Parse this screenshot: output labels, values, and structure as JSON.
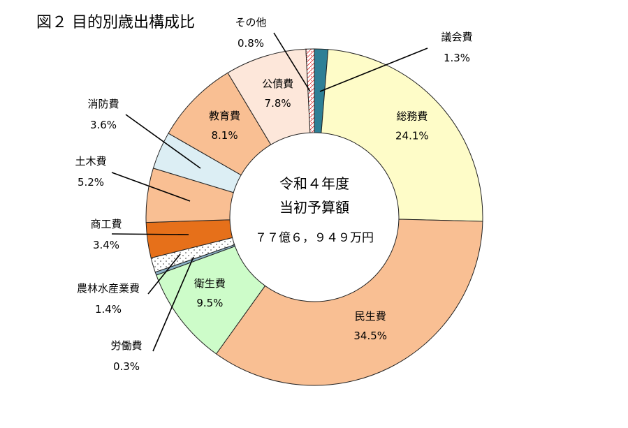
{
  "chart_title": "図２ 目的別歳出構成比",
  "chart_data": {
    "type": "pie",
    "title": "図２ 目的別歳出構成比",
    "center_text": {
      "line1": "令和４年度",
      "line2": "当初予算額",
      "line3": "７７億６，９４９万円"
    },
    "slices": [
      {
        "name": "議会費",
        "value": 1.3,
        "label": "1.3%",
        "color": "#2e7f96"
      },
      {
        "name": "総務費",
        "value": 24.1,
        "label": "24.1%",
        "color": "#fefcc8"
      },
      {
        "name": "民生費",
        "value": 34.5,
        "label": "34.5%",
        "color": "#f9bf93"
      },
      {
        "name": "衛生費",
        "value": 9.5,
        "label": "9.5%",
        "color": "#cdfcc9"
      },
      {
        "name": "労働費",
        "value": 0.3,
        "label": "0.3%",
        "color": "#8ab0c4"
      },
      {
        "name": "農林水産業費",
        "value": 1.4,
        "label": "1.4%",
        "color": "#ffffff",
        "pattern": "dots"
      },
      {
        "name": "商工費",
        "value": 3.4,
        "label": "3.4%",
        "color": "#e6701a"
      },
      {
        "name": "土木費",
        "value": 5.2,
        "label": "5.2%",
        "color": "#f9bf93"
      },
      {
        "name": "消防費",
        "value": 3.6,
        "label": "3.6%",
        "color": "#dceef4"
      },
      {
        "name": "教育費",
        "value": 8.1,
        "label": "8.1%",
        "color": "#f9bf93"
      },
      {
        "name": "公債費",
        "value": 7.8,
        "label": "7.8%",
        "color": "#fde7da"
      },
      {
        "name": "その他",
        "value": 0.8,
        "label": "0.8%",
        "color": "#ffffff",
        "pattern": "redcross"
      }
    ]
  }
}
